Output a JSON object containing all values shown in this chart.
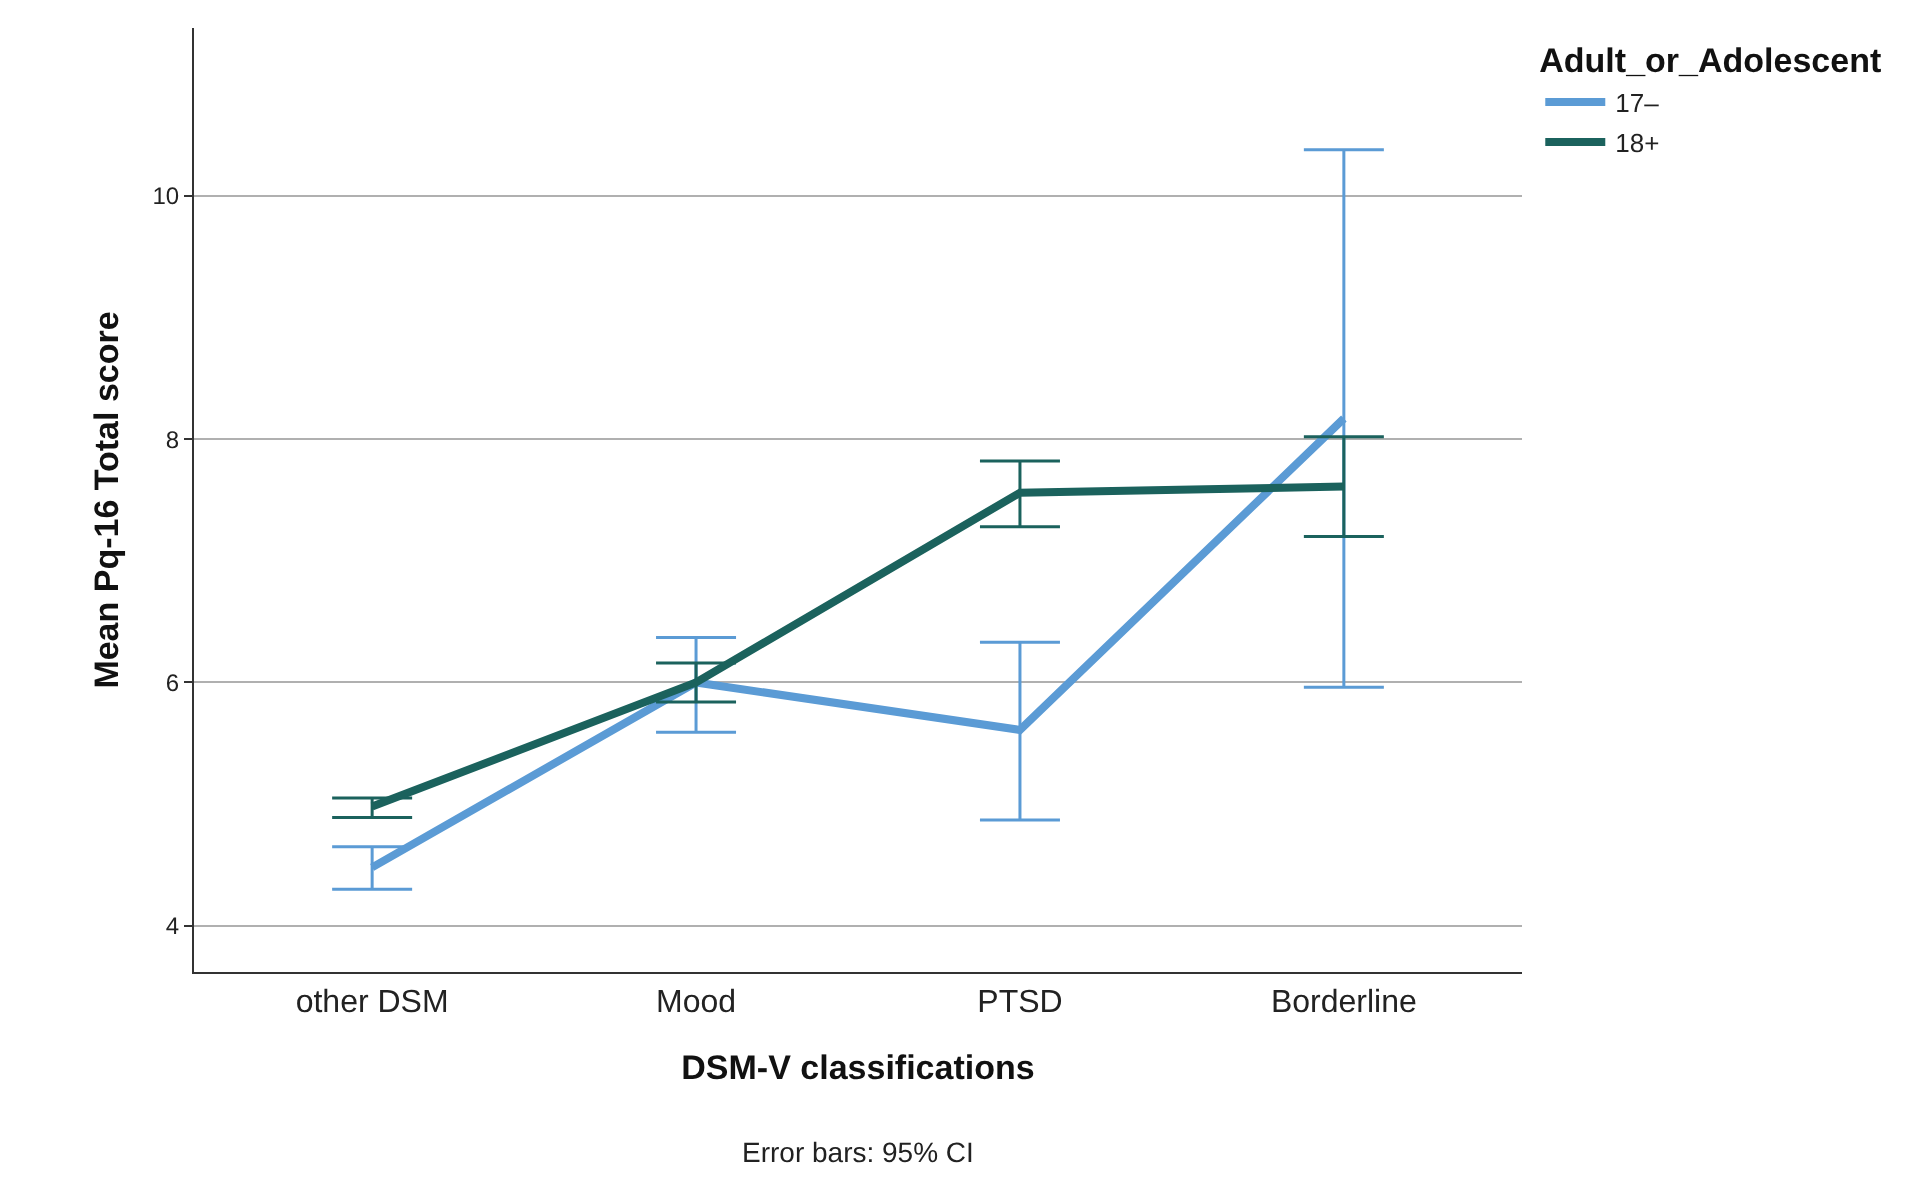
{
  "chart_data": {
    "type": "line",
    "xlabel": "DSM-V classifications",
    "ylabel": "Mean Pq-16 Total score",
    "legend_title": "Adult_or_Adolescent",
    "categories": [
      "other DSM",
      "Mood",
      "PTSD",
      "Borderline"
    ],
    "series": [
      {
        "name": "17–",
        "color": "#5b9bd5",
        "values": [
          4.48,
          6.0,
          5.61,
          8.17
        ],
        "errors": [
          [
            4.3,
            4.65
          ],
          [
            5.59,
            6.37
          ],
          [
            4.87,
            6.33
          ],
          [
            5.96,
            10.38
          ]
        ]
      },
      {
        "name": "18+",
        "color": "#1b625d",
        "values": [
          4.98,
          6.0,
          7.56,
          7.61
        ],
        "errors": [
          [
            4.89,
            5.05
          ],
          [
            5.84,
            6.16
          ],
          [
            7.28,
            7.82
          ],
          [
            7.2,
            8.02
          ]
        ]
      }
    ],
    "ylim": [
      3.62,
      11.38
    ],
    "yticks": [
      4,
      6,
      8,
      10
    ],
    "grid": "y",
    "legend": "top right",
    "marker": "none",
    "line_style": "solid",
    "annotations": [
      "Error bars: 95% CI"
    ]
  }
}
